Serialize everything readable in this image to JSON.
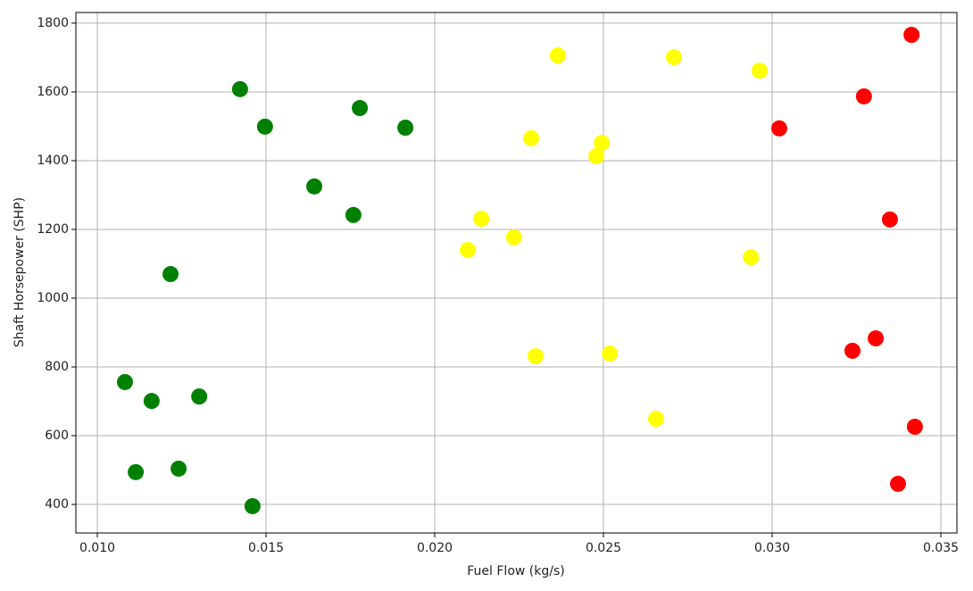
{
  "chart_data": {
    "type": "scatter",
    "xlabel": "Fuel Flow (kg/s)",
    "ylabel": "Shaft Horsepower (SHP)",
    "xlim": [
      0.009365,
      0.035476
    ],
    "ylim": [
      317,
      1831
    ],
    "xticks": [
      {
        "value": 0.01,
        "label": "0.010"
      },
      {
        "value": 0.015,
        "label": "0.015"
      },
      {
        "value": 0.02,
        "label": "0.020"
      },
      {
        "value": 0.025,
        "label": "0.025"
      },
      {
        "value": 0.03,
        "label": "0.030"
      },
      {
        "value": 0.035,
        "label": "0.035"
      }
    ],
    "yticks": [
      400,
      600,
      800,
      1000,
      1200,
      1400,
      1600,
      1800
    ],
    "grid": true,
    "series": [
      {
        "color": "#008000",
        "x": [
          0.01423,
          0.01497,
          0.01778,
          0.01913,
          0.01643,
          0.01759,
          0.01217,
          0.01082,
          0.01161,
          0.01302,
          0.01114,
          0.01241,
          0.0146
        ],
        "values": [
          1608,
          1499,
          1553,
          1496,
          1325,
          1242,
          1070,
          756,
          701,
          714,
          494,
          504,
          395
        ]
      },
      {
        "color": "#ffff00",
        "x": [
          0.02365,
          0.02709,
          0.02963,
          0.02286,
          0.02495,
          0.02479,
          0.02138,
          0.02235,
          0.02098,
          0.02937,
          0.02299,
          0.02519,
          0.02656
        ],
        "values": [
          1706,
          1701,
          1662,
          1465,
          1452,
          1413,
          1231,
          1177,
          1140,
          1119,
          831,
          839,
          649
        ]
      },
      {
        "color": "#ff0000",
        "x": [
          0.03413,
          0.03272,
          0.03021,
          0.03349,
          0.03238,
          0.03307,
          0.03423,
          0.03373
        ],
        "values": [
          1766,
          1587,
          1494,
          1229,
          847,
          883,
          626,
          460
        ]
      }
    ]
  }
}
